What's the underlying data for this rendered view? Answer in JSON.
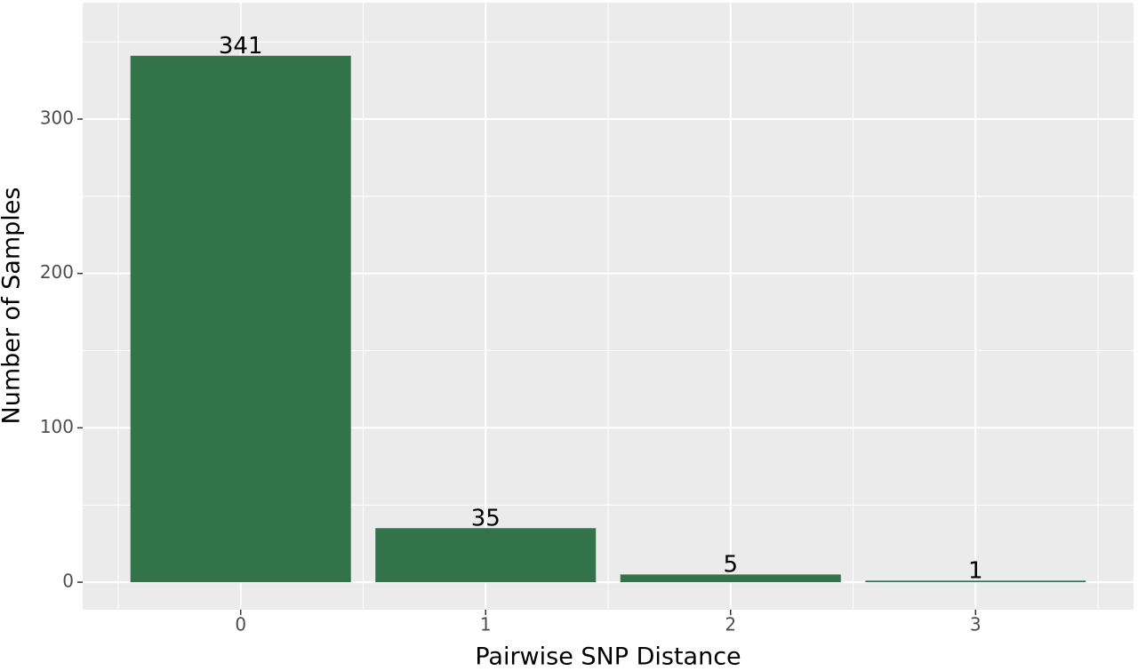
{
  "chart_data": {
    "type": "bar",
    "x_label": "Pairwise SNP Distance",
    "y_label": "Number of Samples",
    "categories": [
      "0",
      "1",
      "2",
      "3"
    ],
    "values": [
      341,
      35,
      5,
      1
    ],
    "color": "#33734a",
    "ylim": [
      -17.8,
      375.4
    ],
    "yticks": [
      0,
      100,
      200,
      300
    ],
    "grid": true
  }
}
